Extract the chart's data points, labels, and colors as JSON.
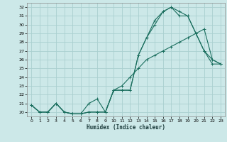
{
  "xlabel": "Humidex (Indice chaleur)",
  "xlim": [
    -0.5,
    23.5
  ],
  "ylim": [
    19.5,
    32.5
  ],
  "yticks": [
    20,
    21,
    22,
    23,
    24,
    25,
    26,
    27,
    28,
    29,
    30,
    31,
    32
  ],
  "xticks": [
    0,
    1,
    2,
    3,
    4,
    5,
    6,
    7,
    8,
    9,
    10,
    11,
    12,
    13,
    14,
    15,
    16,
    17,
    18,
    19,
    20,
    21,
    22,
    23
  ],
  "bg_color": "#cce8e8",
  "grid_color": "#aad0d0",
  "line_color": "#1a6e5e",
  "line1_y": [
    20.8,
    20.0,
    20.0,
    21.0,
    20.0,
    19.8,
    19.8,
    21.0,
    21.5,
    20.0,
    22.5,
    22.5,
    22.5,
    26.5,
    28.5,
    30.5,
    31.5,
    32.0,
    31.5,
    31.0,
    29.0,
    27.0,
    25.5,
    25.5
  ],
  "line2_y": [
    20.8,
    20.0,
    20.0,
    21.0,
    20.0,
    19.8,
    19.8,
    20.0,
    20.0,
    20.0,
    22.5,
    22.5,
    22.5,
    26.5,
    28.5,
    30.0,
    31.5,
    32.0,
    31.0,
    31.0,
    29.0,
    27.0,
    26.0,
    25.5
  ],
  "line3_y": [
    20.8,
    20.0,
    20.0,
    21.0,
    20.0,
    19.8,
    19.8,
    20.0,
    20.0,
    20.0,
    22.5,
    23.0,
    24.0,
    25.0,
    26.0,
    26.5,
    27.0,
    27.5,
    28.0,
    28.5,
    29.0,
    29.5,
    26.0,
    25.5
  ]
}
